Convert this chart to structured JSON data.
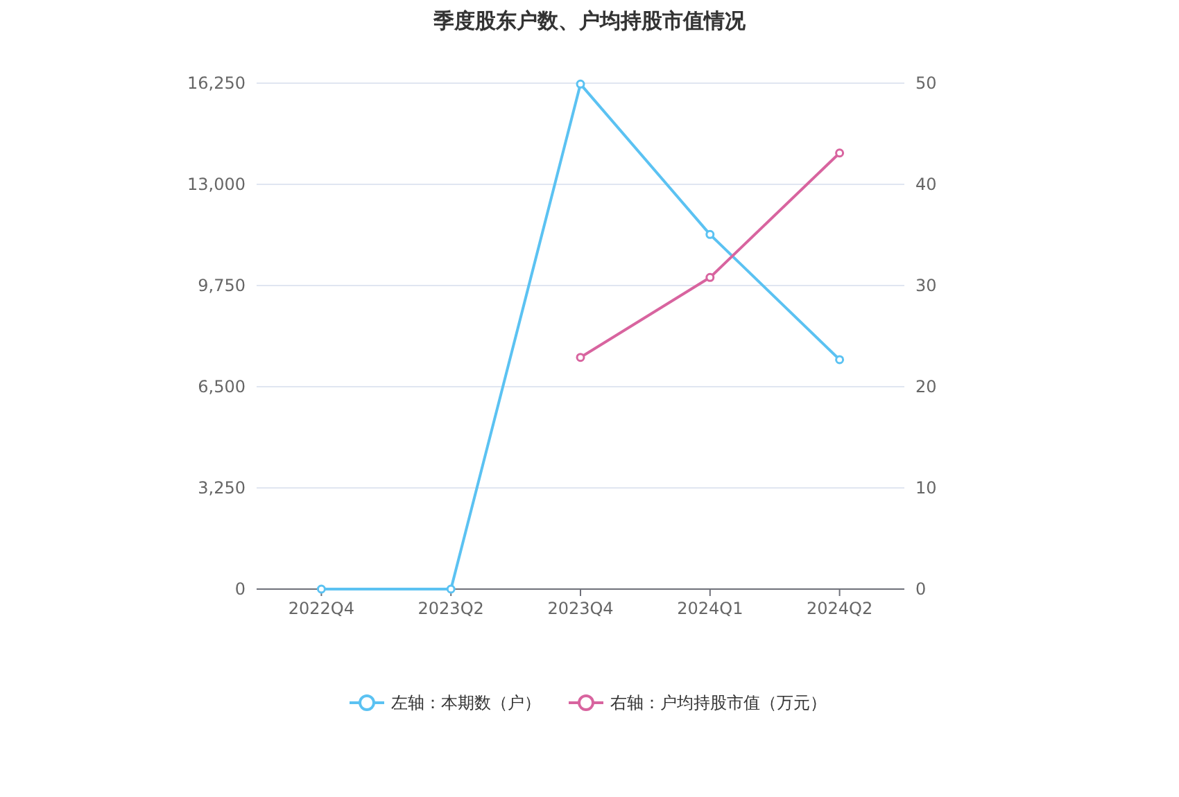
{
  "chart_data": {
    "type": "line",
    "title": "季度股东户数、户均持股市值情况",
    "categories": [
      "2022Q4",
      "2023Q2",
      "2023Q4",
      "2024Q1",
      "2024Q2"
    ],
    "series": [
      {
        "name": "左轴：本期数（户）",
        "color": "#5bc2f2",
        "values": [
          0,
          0,
          16220,
          11390,
          7370
        ]
      },
      {
        "name": "右轴：户均持股市值（万元）",
        "color": "#d8649f",
        "axis": "y2",
        "values": [
          null,
          null,
          22.9,
          30.8,
          43.1
        ]
      }
    ],
    "ylim": [
      0,
      16250
    ],
    "yticks": [
      0,
      {
        "value": 3250,
        "label": "3,250"
      },
      {
        "value": 6500,
        "label": "6,500"
      },
      {
        "value": 9750,
        "label": "9,750"
      },
      {
        "value": 13000,
        "label": "13,000"
      },
      {
        "value": 16250,
        "label": "16,250"
      }
    ],
    "y2lim": [
      0,
      50
    ],
    "y2ticks": [
      0,
      10,
      20,
      30,
      40,
      50
    ],
    "grid": "y",
    "legend": "bottom",
    "marker": "circle"
  }
}
